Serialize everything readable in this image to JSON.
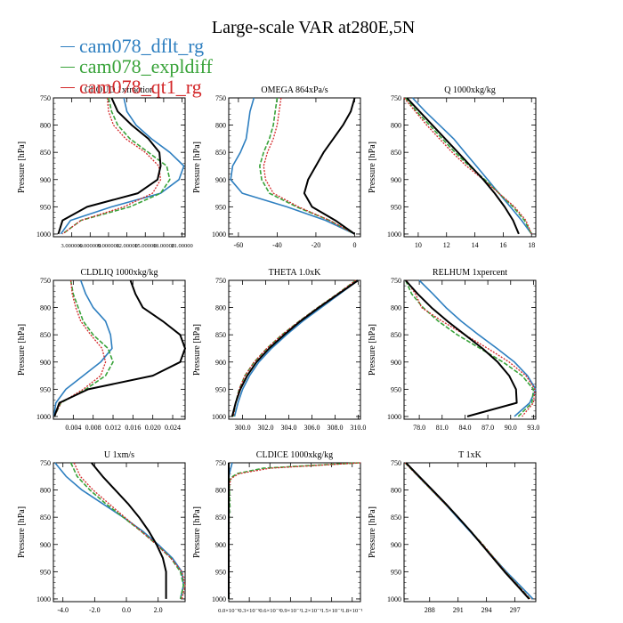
{
  "title": "Large-scale VAR at280E,5N",
  "legend": [
    {
      "name": "cam078_dflt_rg",
      "color": "#2e7fc0"
    },
    {
      "name": "cam078_expldiff",
      "color": "#39a33a"
    },
    {
      "name": "cam078_qt1_rg",
      "color": "#d3282a"
    }
  ],
  "black_color": "#000000",
  "chart_data": [
    {
      "type": "line",
      "title": "CLOUD 1xfraction",
      "ylabel": "Pressure [hPa]",
      "ylim": [
        750,
        1005
      ],
      "yticks": [
        750,
        800,
        850,
        900,
        950,
        1000
      ],
      "xlim": [
        0,
        0.0215
      ],
      "xticks": [
        0.003,
        0.006,
        0.009,
        0.012,
        0.015,
        0.018,
        0.021
      ],
      "xticklabels": [
        "3.000000",
        "6.000000",
        "9.000000",
        "12.00000",
        "15.00000",
        "18.00000",
        "21.00000"
      ],
      "pressure": [
        750,
        775,
        800,
        825,
        850,
        875,
        900,
        925,
        950,
        975,
        1000
      ],
      "series": [
        {
          "values": [
            0.0115,
            0.012,
            0.0135,
            0.016,
            0.019,
            0.0213,
            0.0205,
            0.0175,
            0.0095,
            0.0028,
            0.0012
          ],
          "color": "#2e7fc0"
        },
        {
          "values": [
            0.009,
            0.0095,
            0.0105,
            0.0125,
            0.0155,
            0.0185,
            0.019,
            0.0175,
            0.0125,
            0.0045,
            0.0015
          ],
          "color": "#39a33a"
        },
        {
          "values": [
            0.0088,
            0.009,
            0.0098,
            0.0118,
            0.015,
            0.0172,
            0.0175,
            0.0162,
            0.0115,
            0.0045,
            0.0015
          ],
          "color": "#d3282a"
        },
        {
          "values": [
            0.0095,
            0.0105,
            0.0128,
            0.0155,
            0.0173,
            0.0175,
            0.017,
            0.0138,
            0.0055,
            0.0015,
            0.0008
          ],
          "color": "#000000"
        }
      ]
    },
    {
      "type": "line",
      "title": "OMEGA  864xPa/s",
      "ylabel": "Pressure [hPa]",
      "ylim": [
        750,
        1005
      ],
      "yticks": [
        750,
        800,
        850,
        900,
        950,
        1000
      ],
      "xlim": [
        -65,
        3
      ],
      "xticks": [
        -60,
        -40,
        -20,
        0
      ],
      "xticklabels": [
        "-60",
        "-40",
        "-20",
        "0"
      ],
      "pressure": [
        750,
        775,
        800,
        825,
        850,
        875,
        900,
        925,
        950,
        975,
        1000
      ],
      "series": [
        {
          "values": [
            -52,
            -54,
            -55,
            -56,
            -59,
            -63,
            -64,
            -58,
            -35,
            -15,
            0
          ],
          "color": "#2e7fc0"
        },
        {
          "values": [
            -40,
            -41,
            -42,
            -44,
            -47,
            -49,
            -48,
            -44,
            -30,
            -13,
            0
          ],
          "color": "#39a33a"
        },
        {
          "values": [
            -38,
            -39,
            -40,
            -42,
            -45,
            -47,
            -46,
            -42,
            -29,
            -13,
            0
          ],
          "color": "#d3282a"
        },
        {
          "values": [
            0,
            -2,
            -6,
            -11,
            -16,
            -20,
            -24,
            -26,
            -22,
            -10,
            0
          ],
          "color": "#000000"
        }
      ]
    },
    {
      "type": "line",
      "title": "Q  1000xkg/kg",
      "ylabel": "Pressure [hPa]",
      "ylim": [
        750,
        1005
      ],
      "yticks": [
        750,
        800,
        850,
        900,
        950,
        1000
      ],
      "xlim": [
        9,
        18.3
      ],
      "xticks": [
        10,
        12,
        14,
        16,
        18
      ],
      "xticklabels": [
        "10",
        "12",
        "14",
        "16",
        "18"
      ],
      "pressure": [
        750,
        775,
        800,
        825,
        850,
        875,
        900,
        925,
        950,
        975,
        1000
      ],
      "series": [
        {
          "values": [
            9.6,
            10.5,
            11.5,
            12.5,
            13.3,
            14.1,
            14.9,
            15.7,
            16.5,
            17.3,
            18.0
          ],
          "color": "#2e7fc0"
        },
        {
          "values": [
            9.1,
            9.9,
            10.8,
            11.7,
            12.6,
            13.6,
            14.7,
            15.7,
            16.7,
            17.5,
            18.0
          ],
          "color": "#39a33a"
        },
        {
          "values": [
            9.0,
            9.8,
            10.6,
            11.5,
            12.4,
            13.4,
            14.6,
            15.7,
            16.8,
            17.6,
            18.0
          ],
          "color": "#d3282a"
        },
        {
          "values": [
            9.2,
            10.1,
            11.0,
            11.9,
            12.8,
            13.7,
            14.6,
            15.4,
            16.1,
            16.7,
            17.1
          ],
          "color": "#000000"
        }
      ]
    },
    {
      "type": "line",
      "title": "CLDLIQ  1000xkg/kg",
      "ylabel": "Pressure [hPa]",
      "ylim": [
        750,
        1005
      ],
      "yticks": [
        750,
        800,
        850,
        900,
        950,
        1000
      ],
      "xlim": [
        0,
        0.0265
      ],
      "xticks": [
        0.004,
        0.008,
        0.012,
        0.016,
        0.02,
        0.024
      ],
      "xticklabels": [
        "0.004",
        "0.008",
        "0.012",
        "0.016",
        "0.020",
        "0.024"
      ],
      "pressure": [
        750,
        775,
        800,
        825,
        850,
        875,
        900,
        925,
        950,
        975,
        1000
      ],
      "series": [
        {
          "values": [
            0.0055,
            0.0065,
            0.008,
            0.0105,
            0.0115,
            0.0118,
            0.0095,
            0.006,
            0.0025,
            0.0005,
            0.0001
          ],
          "color": "#2e7fc0"
        },
        {
          "values": [
            0.0035,
            0.004,
            0.005,
            0.006,
            0.008,
            0.011,
            0.012,
            0.0105,
            0.0065,
            0.0015,
            0.0002
          ],
          "color": "#39a33a"
        },
        {
          "values": [
            0.0035,
            0.0038,
            0.0045,
            0.0055,
            0.0075,
            0.0098,
            0.0105,
            0.0095,
            0.006,
            0.0015,
            0.0002
          ],
          "color": "#d3282a"
        },
        {
          "values": [
            0.0155,
            0.0165,
            0.018,
            0.022,
            0.0255,
            0.0265,
            0.0255,
            0.02,
            0.007,
            0.0012,
            0.0002
          ],
          "color": "#000000"
        }
      ]
    },
    {
      "type": "line",
      "title": "THETA  1.0xK",
      "ylabel": "Pressure [hPa]",
      "ylim": [
        750,
        1005
      ],
      "yticks": [
        750,
        800,
        850,
        900,
        950,
        1000
      ],
      "xlim": [
        298.8,
        310.2
      ],
      "xticks": [
        300.0,
        302.0,
        304.0,
        306.0,
        308.0,
        310.0
      ],
      "xticklabels": [
        "300.0",
        "302.0",
        "304.0",
        "306.0",
        "308.0",
        "310.0"
      ],
      "pressure": [
        750,
        775,
        800,
        825,
        850,
        875,
        900,
        925,
        950,
        975,
        1000
      ],
      "series": [
        {
          "values": [
            310.0,
            308.4,
            306.8,
            305.2,
            303.8,
            302.5,
            301.4,
            300.6,
            300.0,
            299.6,
            299.3
          ],
          "color": "#2e7fc0"
        },
        {
          "values": [
            309.8,
            308.2,
            306.5,
            304.9,
            303.4,
            302.1,
            301.0,
            300.2,
            299.7,
            299.4,
            299.2
          ],
          "color": "#39a33a"
        },
        {
          "values": [
            309.8,
            308.2,
            306.5,
            304.9,
            303.4,
            302.1,
            301.0,
            300.2,
            299.7,
            299.4,
            299.2
          ],
          "color": "#d3282a"
        },
        {
          "values": [
            310.0,
            308.3,
            306.6,
            305.0,
            303.6,
            302.3,
            301.2,
            300.4,
            299.8,
            299.4,
            299.1
          ],
          "color": "#000000"
        }
      ]
    },
    {
      "type": "line",
      "title": "RELHUM  1xpercent",
      "ylabel": "Pressure [hPa]",
      "ylim": [
        750,
        1005
      ],
      "yticks": [
        750,
        800,
        850,
        900,
        950,
        1000
      ],
      "xlim": [
        76,
        93.3
      ],
      "xticks": [
        78.0,
        81.0,
        84.0,
        87.0,
        90.0,
        93.0
      ],
      "xticklabels": [
        "78.0",
        "81.0",
        "84.0",
        "87.0",
        "90.0",
        "93.0"
      ],
      "pressure": [
        750,
        775,
        800,
        825,
        850,
        875,
        900,
        925,
        950,
        975,
        1000
      ],
      "series": [
        {
          "values": [
            78.0,
            79.8,
            81.5,
            83.5,
            85.8,
            88.2,
            90.5,
            92.2,
            93.3,
            92.5,
            90.5
          ],
          "color": "#2e7fc0"
        },
        {
          "values": [
            76.2,
            77.0,
            78.5,
            80.5,
            83.0,
            86.0,
            89.0,
            91.5,
            93.0,
            92.8,
            91.0
          ],
          "color": "#39a33a"
        },
        {
          "values": [
            76.3,
            77.5,
            78.3,
            81.0,
            84.0,
            87.0,
            89.8,
            92.0,
            93.2,
            93.0,
            91.5
          ],
          "color": "#d3282a"
        },
        {
          "values": [
            76.2,
            77.8,
            79.6,
            81.7,
            84.0,
            86.3,
            88.3,
            89.8,
            90.7,
            90.8,
            84.3
          ],
          "color": "#000000"
        }
      ]
    },
    {
      "type": "line",
      "title": "U  1xm/s",
      "ylabel": "Pressure [hPa]",
      "ylim": [
        750,
        1005
      ],
      "yticks": [
        750,
        800,
        850,
        900,
        950,
        1000
      ],
      "xlim": [
        -4.6,
        3.7
      ],
      "xticks": [
        -4.0,
        -2.0,
        0.0,
        2.0
      ],
      "xticklabels": [
        "-4.0",
        "-2.0",
        "0.0",
        "2.0"
      ],
      "pressure": [
        750,
        775,
        800,
        825,
        850,
        875,
        900,
        925,
        950,
        975,
        1000
      ],
      "series": [
        {
          "values": [
            -4.5,
            -3.8,
            -2.8,
            -1.5,
            -0.2,
            1.0,
            2.0,
            2.9,
            3.5,
            3.6,
            3.4
          ],
          "color": "#2e7fc0"
        },
        {
          "values": [
            -3.5,
            -3.1,
            -2.3,
            -1.3,
            -0.2,
            0.9,
            1.9,
            2.8,
            3.4,
            3.6,
            3.4
          ],
          "color": "#39a33a"
        },
        {
          "values": [
            -3.3,
            -2.9,
            -2.1,
            -1.1,
            -0.1,
            0.9,
            1.9,
            2.8,
            3.5,
            3.7,
            3.5
          ],
          "color": "#d3282a"
        },
        {
          "values": [
            -2.2,
            -1.5,
            -0.7,
            0.1,
            0.8,
            1.4,
            1.9,
            2.3,
            2.5,
            2.5,
            2.5
          ],
          "color": "#000000"
        }
      ]
    },
    {
      "type": "line",
      "title": "CLDICE  1000xkg/kg",
      "ylabel": "Pressure [hPa]",
      "ylim": [
        750,
        1005
      ],
      "yticks": [
        750,
        800,
        850,
        900,
        950,
        1000
      ],
      "xlim": [
        0,
        1.92
      ],
      "xticks": [
        0,
        0.3,
        0.6,
        0.9,
        1.2,
        1.5,
        1.8
      ],
      "xticklabels": [
        "0.0×10⁻¹",
        "0.3×10⁻¹",
        "0.6×10⁻¹",
        "0.9×10⁻¹",
        "1.2×10⁻¹",
        "1.5×10⁻¹",
        "1.8×10⁻¹"
      ],
      "pressure": [
        750,
        760,
        770,
        775,
        780,
        790,
        800,
        825,
        850,
        900,
        1000
      ],
      "series": [
        {
          "values": [
            0.05,
            0.03,
            0.01,
            0.005,
            0.002,
            0,
            0,
            0,
            0,
            0,
            0
          ],
          "color": "#2e7fc0"
        },
        {
          "values": [
            1.9,
            0.5,
            0.12,
            0.06,
            0.02,
            0.01,
            0.01,
            0.015,
            0.005,
            0,
            0
          ],
          "color": "#39a33a"
        },
        {
          "values": [
            1.92,
            0.6,
            0.15,
            0.08,
            0.03,
            0.01,
            0.005,
            0.005,
            0,
            0,
            0
          ],
          "color": "#d3282a"
        },
        {
          "values": [
            0.0,
            0.0,
            0.0,
            0.0,
            0.0,
            0,
            0,
            0,
            0,
            0,
            0
          ],
          "color": "#000000"
        }
      ]
    },
    {
      "type": "line",
      "title": "T  1xK",
      "ylabel": "Pressure [hPa]",
      "ylim": [
        750,
        1005
      ],
      "yticks": [
        750,
        800,
        850,
        900,
        950,
        1000
      ],
      "xlim": [
        285.3,
        299.2
      ],
      "xticks": [
        288,
        291,
        294,
        297
      ],
      "xticklabels": [
        "288",
        "291",
        "294",
        "297"
      ],
      "pressure": [
        750,
        775,
        800,
        825,
        850,
        875,
        900,
        925,
        950,
        975,
        1000
      ],
      "series": [
        {
          "values": [
            285.5,
            286.8,
            288.2,
            289.6,
            290.9,
            292.2,
            293.5,
            294.8,
            296.1,
            297.5,
            298.9
          ],
          "color": "#2e7fc0"
        },
        {
          "values": [
            285.4,
            286.8,
            288.2,
            289.6,
            291.0,
            292.3,
            293.6,
            294.8,
            296.0,
            297.3,
            298.6
          ],
          "color": "#39a33a"
        },
        {
          "values": [
            285.4,
            286.8,
            288.2,
            289.6,
            291.0,
            292.3,
            293.6,
            294.8,
            296.0,
            297.3,
            298.6
          ],
          "color": "#d3282a"
        },
        {
          "values": [
            285.5,
            286.9,
            288.3,
            289.7,
            291.0,
            292.3,
            293.5,
            294.7,
            295.9,
            297.2,
            298.5
          ],
          "color": "#000000"
        }
      ]
    }
  ]
}
